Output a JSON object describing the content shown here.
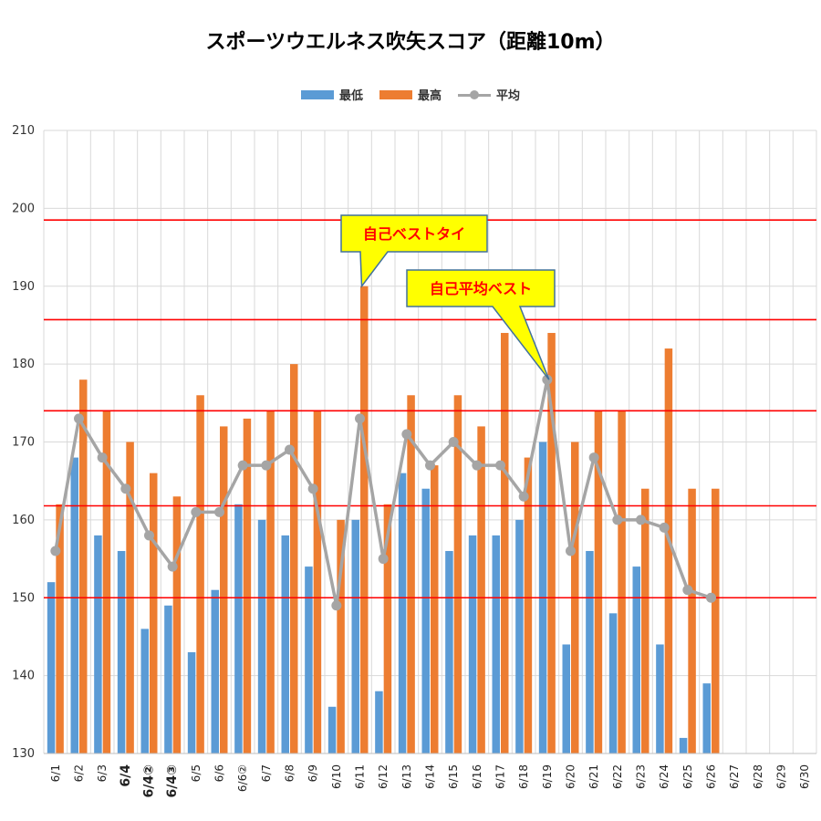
{
  "colors": {
    "min": "#5b9bd5",
    "max": "#ed7d31",
    "avg": "#a5a5a5",
    "refline": "#ff0000",
    "grid": "#d9d9d9",
    "callout_fill": "#ffff00",
    "callout_stroke": "#41719c"
  },
  "chart_data": {
    "type": "bar",
    "title": "スポーツウエルネス吹矢スコア（距離10m）",
    "ylim": [
      130,
      210
    ],
    "yticks": [
      130,
      140,
      150,
      160,
      170,
      180,
      190,
      200,
      210
    ],
    "grid": true,
    "legend_position": "top-center",
    "categories": [
      "6/1",
      "6/2",
      "6/3",
      "6/4",
      "6/4②",
      "6/4③",
      "6/5",
      "6/6",
      "6/6②",
      "6/7",
      "6/8",
      "6/9",
      "6/10",
      "6/11",
      "6/12",
      "6/13",
      "6/14",
      "6/15",
      "6/16",
      "6/17",
      "6/18",
      "6/19",
      "6/20",
      "6/21",
      "6/22",
      "6/23",
      "6/24",
      "6/25",
      "6/26",
      "6/27",
      "6/28",
      "6/29",
      "6/30"
    ],
    "bold_categories": [
      "6/4",
      "6/4②",
      "6/4③"
    ],
    "series": [
      {
        "name": "最低",
        "type": "bar",
        "values": [
          152,
          168,
          158,
          156,
          146,
          149,
          143,
          151,
          162,
          160,
          158,
          154,
          136,
          160,
          138,
          166,
          164,
          156,
          158,
          158,
          160,
          170,
          144,
          156,
          148,
          154,
          144,
          132,
          139,
          null,
          null,
          null,
          null
        ]
      },
      {
        "name": "最高",
        "type": "bar",
        "values": [
          162,
          178,
          174,
          170,
          166,
          163,
          176,
          172,
          173,
          174,
          180,
          174,
          160,
          190,
          162,
          176,
          167,
          176,
          172,
          184,
          168,
          184,
          170,
          174,
          174,
          164,
          182,
          164,
          164,
          null,
          null,
          null,
          null
        ]
      },
      {
        "name": "平均",
        "type": "line",
        "values": [
          156,
          173,
          168,
          164,
          158,
          154,
          161,
          161,
          167,
          167,
          169,
          164,
          149,
          173,
          155,
          171,
          167,
          170,
          167,
          167,
          163,
          178,
          156,
          168,
          160,
          160,
          159,
          151,
          150,
          null,
          null,
          null,
          null
        ]
      }
    ],
    "reference_lines": [
      198.5,
      185.7,
      174,
      161.8,
      150
    ],
    "annotations": [
      {
        "text": "自己ベストタイ",
        "category": "6/11",
        "value": 190
      },
      {
        "text": "自己平均ベスト",
        "category": "6/19",
        "value": 178
      }
    ]
  }
}
